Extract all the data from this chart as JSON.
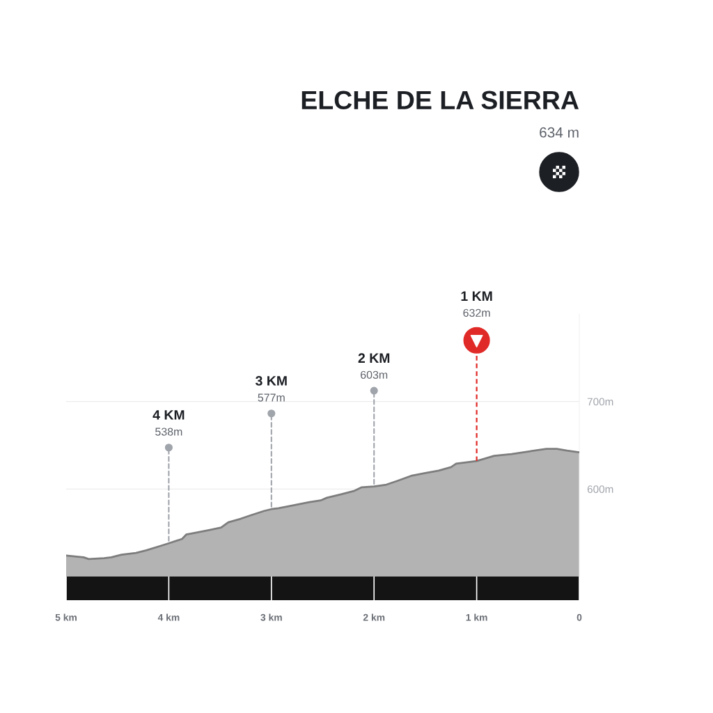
{
  "chart_data": {
    "type": "area",
    "title": "ELCHE DE LA SIERRA",
    "subtitle": "634 m",
    "x": [
      5.0,
      4.83,
      4.78,
      4.63,
      4.56,
      4.46,
      4.32,
      4.22,
      4.08,
      4.0,
      3.87,
      3.83,
      3.74,
      3.61,
      3.49,
      3.42,
      3.3,
      3.2,
      3.07,
      3.0,
      2.93,
      2.8,
      2.63,
      2.52,
      2.46,
      2.32,
      2.19,
      2.12,
      2.0,
      1.88,
      1.78,
      1.64,
      1.51,
      1.37,
      1.25,
      1.2,
      1.0,
      0.83,
      0.66,
      0.49,
      0.32,
      0.22,
      0.12,
      0.0
    ],
    "series": [
      {
        "color": "#b3b3b3",
        "values": [
          524,
          522,
          520,
          521,
          522,
          525,
          527,
          530,
          535,
          538,
          543,
          548,
          550,
          553,
          556,
          562,
          566,
          570,
          575,
          577,
          578,
          581,
          585,
          587,
          590,
          594,
          598,
          602,
          603,
          605,
          609,
          615,
          618,
          621,
          625,
          629,
          632,
          638,
          640,
          643,
          646,
          646,
          644,
          642
        ]
      }
    ],
    "xlim": [
      5,
      0
    ],
    "xticks": [
      {
        "value": 5,
        "label": "5 km"
      },
      {
        "value": 4,
        "label": "4 km"
      },
      {
        "value": 3,
        "label": "3 km"
      },
      {
        "value": 2,
        "label": "2 km"
      },
      {
        "value": 1,
        "label": "1 km"
      },
      0
    ],
    "ylim": [
      500,
      800
    ],
    "yticks": [
      {
        "value": 600,
        "label": "600m"
      },
      {
        "value": 700,
        "label": "700m"
      }
    ],
    "grid": "y",
    "annotations": [
      {
        "text": "4 KM\n538m",
        "x": 4,
        "y": 538
      },
      {
        "text": "3 KM\n577m",
        "x": 3,
        "y": 577
      },
      {
        "text": "2 KM\n603m",
        "x": 2,
        "y": 603
      }
    ],
    "ref_lines": [
      {
        "axis": "x",
        "value": 1,
        "label": "1 KM\n632m",
        "color": "#e02a27",
        "line_style": "dashed"
      }
    ]
  }
}
